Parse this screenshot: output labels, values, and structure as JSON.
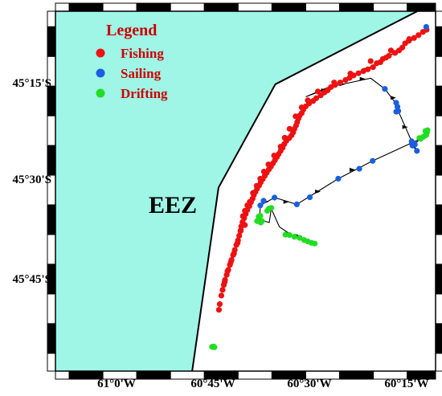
{
  "colors": {
    "eez_fill": "#9ff5e6",
    "fishing": "#ee1111",
    "sailing": "#1a5fe0",
    "drifting": "#22dd22",
    "track": "#000000",
    "legend_text": "#cc0000"
  },
  "labels": {
    "eez": "EEZ",
    "legend_title": "Legend",
    "legend_fishing": "Fishing",
    "legend_sailing": "Sailing",
    "legend_drifting": "Drifting"
  },
  "axes": {
    "x_ticks": [
      "61°0'W",
      "60°45'W",
      "60°30'W",
      "60°15'W"
    ],
    "y_ticks": [
      "45°15'S",
      "45°30'S",
      "45°45'S"
    ]
  },
  "chart_data": {
    "type": "scatter",
    "x_units": "longitude (degrees, negative = W)",
    "y_units": "latitude (degrees, negative = S)",
    "xlim": [
      -61.117,
      -60.18
    ],
    "ylim": [
      -46.05,
      -45.04
    ],
    "eez_boundary": [
      [
        -60.78,
        -46.05
      ],
      [
        -60.715,
        -45.535
      ],
      [
        -60.575,
        -45.245
      ],
      [
        -60.225,
        -45.04
      ]
    ],
    "series": [
      {
        "name": "Fishing",
        "points": [
          [
            -60.202,
            -45.092
          ],
          [
            -60.211,
            -45.098
          ],
          [
            -60.222,
            -45.107
          ],
          [
            -60.233,
            -45.115
          ],
          [
            -60.246,
            -45.123
          ],
          [
            -60.255,
            -45.13
          ],
          [
            -60.262,
            -45.142
          ],
          [
            -60.27,
            -45.15
          ],
          [
            -60.28,
            -45.157
          ],
          [
            -60.295,
            -45.165
          ],
          [
            -60.302,
            -45.17
          ],
          [
            -60.31,
            -45.174
          ],
          [
            -60.316,
            -45.183
          ],
          [
            -60.325,
            -45.186
          ],
          [
            -60.334,
            -45.197
          ],
          [
            -60.347,
            -45.203
          ],
          [
            -60.358,
            -45.208
          ],
          [
            -60.37,
            -45.214
          ],
          [
            -60.382,
            -45.22
          ],
          [
            -60.392,
            -45.227
          ],
          [
            -60.402,
            -45.233
          ],
          [
            -60.415,
            -45.24
          ],
          [
            -60.428,
            -45.247
          ],
          [
            -60.438,
            -45.253
          ],
          [
            -60.446,
            -45.262
          ],
          [
            -60.454,
            -45.268
          ],
          [
            -60.463,
            -45.276
          ],
          [
            -60.474,
            -45.284
          ],
          [
            -60.482,
            -45.292
          ],
          [
            -60.492,
            -45.299
          ],
          [
            -60.5,
            -45.307
          ],
          [
            -60.506,
            -45.316
          ],
          [
            -60.51,
            -45.326
          ],
          [
            -60.515,
            -45.333
          ],
          [
            -60.518,
            -45.341
          ],
          [
            -60.521,
            -45.351
          ],
          [
            -60.524,
            -45.361
          ],
          [
            -60.528,
            -45.37
          ],
          [
            -60.531,
            -45.38
          ],
          [
            -60.535,
            -45.388
          ],
          [
            -60.541,
            -45.396
          ],
          [
            -60.548,
            -45.404
          ],
          [
            -60.553,
            -45.413
          ],
          [
            -60.557,
            -45.423
          ],
          [
            -60.562,
            -45.432
          ],
          [
            -60.567,
            -45.441
          ],
          [
            -60.571,
            -45.449
          ],
          [
            -60.576,
            -45.458
          ],
          [
            -60.581,
            -45.467
          ],
          [
            -60.586,
            -45.476
          ],
          [
            -60.591,
            -45.484
          ],
          [
            -60.596,
            -45.493
          ],
          [
            -60.601,
            -45.502
          ],
          [
            -60.606,
            -45.511
          ],
          [
            -60.611,
            -45.52
          ],
          [
            -60.615,
            -45.529
          ],
          [
            -60.62,
            -45.538
          ],
          [
            -60.624,
            -45.547
          ],
          [
            -60.628,
            -45.556
          ],
          [
            -60.631,
            -45.566
          ],
          [
            -60.635,
            -45.576
          ],
          [
            -60.639,
            -45.587
          ],
          [
            -60.644,
            -45.598
          ],
          [
            -60.648,
            -45.609
          ],
          [
            -60.652,
            -45.621
          ],
          [
            -60.656,
            -45.632
          ],
          [
            -60.659,
            -45.644
          ],
          [
            -60.661,
            -45.657
          ],
          [
            -60.664,
            -45.67
          ],
          [
            -60.667,
            -45.683
          ],
          [
            -60.671,
            -45.696
          ],
          [
            -60.675,
            -45.71
          ],
          [
            -60.679,
            -45.724
          ],
          [
            -60.683,
            -45.738
          ],
          [
            -60.687,
            -45.752
          ],
          [
            -60.691,
            -45.766
          ],
          [
            -60.695,
            -45.78
          ],
          [
            -60.699,
            -45.794
          ],
          [
            -60.702,
            -45.808
          ],
          [
            -60.705,
            -45.822
          ],
          [
            -60.708,
            -45.838
          ],
          [
            -60.712,
            -45.862
          ],
          [
            -60.714,
            -45.878
          ],
          [
            -60.245,
            -45.118
          ],
          [
            -60.29,
            -45.15
          ],
          [
            -60.34,
            -45.18
          ],
          [
            -60.39,
            -45.215
          ],
          [
            -60.43,
            -45.24
          ],
          [
            -60.47,
            -45.265
          ],
          [
            -60.495,
            -45.29
          ],
          [
            -60.51,
            -45.31
          ],
          [
            -60.525,
            -45.335
          ],
          [
            -60.54,
            -45.37
          ],
          [
            -60.552,
            -45.395
          ],
          [
            -60.562,
            -45.42
          ],
          [
            -60.578,
            -45.445
          ],
          [
            -60.592,
            -45.47
          ],
          [
            -60.603,
            -45.49
          ],
          [
            -60.612,
            -45.51
          ],
          [
            -60.621,
            -45.53
          ],
          [
            -60.63,
            -45.55
          ],
          [
            -60.638,
            -45.575
          ],
          [
            -60.644,
            -45.585
          ],
          [
            -60.65,
            -45.6
          ],
          [
            -60.655,
            -45.615
          ],
          [
            -60.65,
            -45.64
          ],
          [
            -60.66,
            -45.655
          ],
          [
            -60.668,
            -45.69
          ],
          [
            -60.677,
            -45.72
          ],
          [
            -60.685,
            -45.745
          ],
          [
            -60.693,
            -45.77
          ],
          [
            -60.7,
            -45.8
          ]
        ]
      },
      {
        "name": "Sailing",
        "points": [
          [
            -60.203,
            -45.084
          ],
          [
            -60.305,
            -45.258
          ],
          [
            -60.277,
            -45.297
          ],
          [
            -60.274,
            -45.308
          ],
          [
            -60.272,
            -45.32
          ],
          [
            -60.277,
            -45.322
          ],
          [
            -60.239,
            -45.405
          ],
          [
            -60.231,
            -45.414
          ],
          [
            -60.226,
            -45.432
          ],
          [
            -60.237,
            -45.417
          ],
          [
            -60.335,
            -45.46
          ],
          [
            -60.368,
            -45.482
          ],
          [
            -60.42,
            -45.51
          ],
          [
            -60.49,
            -45.562
          ],
          [
            -60.522,
            -45.582
          ],
          [
            -60.577,
            -45.563
          ],
          [
            -60.604,
            -45.572
          ],
          [
            -60.612,
            -45.585
          ]
        ]
      },
      {
        "name": "Drifting",
        "points": [
          [
            -60.2,
            -45.374
          ],
          [
            -60.205,
            -45.376
          ],
          [
            -60.201,
            -45.38
          ],
          [
            -60.203,
            -45.387
          ],
          [
            -60.207,
            -45.39
          ],
          [
            -60.211,
            -45.393
          ],
          [
            -60.217,
            -45.398
          ],
          [
            -60.22,
            -45.396
          ],
          [
            -60.585,
            -45.592
          ],
          [
            -60.591,
            -45.594
          ],
          [
            -60.595,
            -45.6
          ],
          [
            -60.612,
            -45.614
          ],
          [
            -60.616,
            -45.616
          ],
          [
            -60.615,
            -45.623
          ],
          [
            -60.608,
            -45.629
          ],
          [
            -60.611,
            -45.633
          ],
          [
            -60.62,
            -45.629
          ],
          [
            -60.55,
            -45.667
          ],
          [
            -60.54,
            -45.668
          ],
          [
            -60.528,
            -45.673
          ],
          [
            -60.515,
            -45.676
          ],
          [
            -60.504,
            -45.682
          ],
          [
            -60.495,
            -45.686
          ],
          [
            -60.486,
            -45.69
          ],
          [
            -60.478,
            -45.692
          ],
          [
            -60.727,
            -45.981
          ],
          [
            -60.731,
            -45.982
          ],
          [
            -60.725,
            -45.983
          ]
        ]
      }
    ],
    "track": [
      [
        -60.202,
        -45.092
      ],
      [
        -60.305,
        -45.175
      ],
      [
        -60.402,
        -45.233
      ],
      [
        -60.5,
        -45.28
      ],
      [
        -60.43,
        -45.25
      ],
      [
        -60.34,
        -45.228
      ],
      [
        -60.305,
        -45.258
      ],
      [
        -60.277,
        -45.3
      ],
      [
        -60.272,
        -45.32
      ],
      [
        -60.239,
        -45.405
      ],
      [
        -60.226,
        -45.432
      ],
      [
        -60.237,
        -45.417
      ],
      [
        -60.217,
        -45.398
      ],
      [
        -60.335,
        -45.46
      ],
      [
        -60.42,
        -45.51
      ],
      [
        -60.522,
        -45.582
      ],
      [
        -60.577,
        -45.563
      ],
      [
        -60.612,
        -45.585
      ],
      [
        -60.614,
        -45.625
      ],
      [
        -60.59,
        -45.633
      ],
      [
        -60.585,
        -45.594
      ],
      [
        -60.565,
        -45.645
      ],
      [
        -60.53,
        -45.672
      ],
      [
        -60.478,
        -45.692
      ]
    ],
    "track_arrows": [
      [
        -60.35,
        -45.204
      ],
      [
        -60.455,
        -45.262
      ],
      [
        -60.41,
        -45.245
      ],
      [
        -60.36,
        -45.23
      ],
      [
        -60.284,
        -45.283
      ],
      [
        -60.255,
        -45.365
      ],
      [
        -60.385,
        -45.485
      ],
      [
        -60.47,
        -45.546
      ],
      [
        -60.548,
        -45.575
      ],
      [
        -60.598,
        -45.575
      ],
      [
        -60.52,
        -45.67
      ]
    ]
  }
}
